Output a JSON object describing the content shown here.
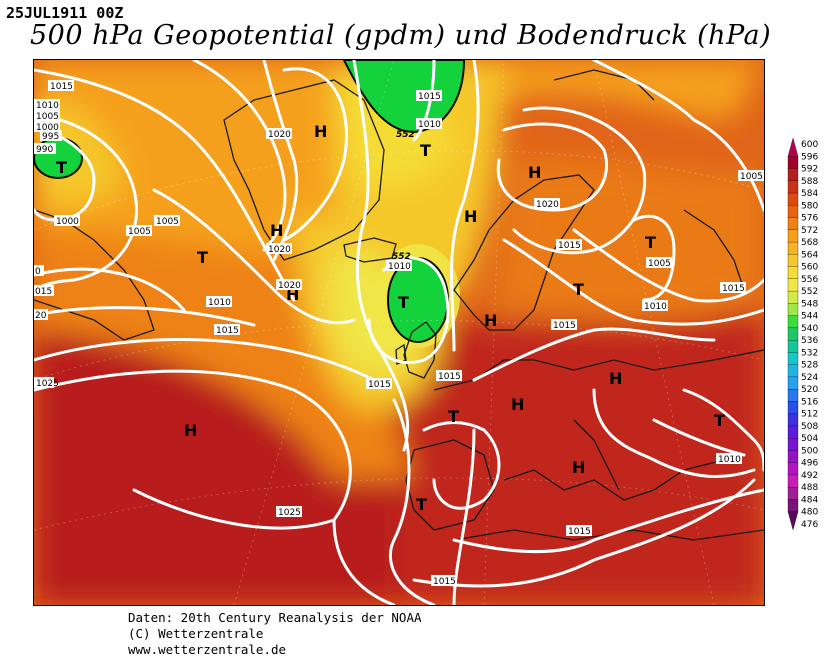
{
  "header": {
    "date_label": "25JUL1911 00Z",
    "title": "500 hPa Geopotential (gpdm) und Bodendruck (hPa)"
  },
  "footer": {
    "line1": "Daten: 20th Century Reanalysis der NOAA",
    "line2": "(C) Wetterzentrale",
    "line3": "www.wetterzentrale.de"
  },
  "legend": {
    "levels": [
      "600",
      "596",
      "592",
      "588",
      "584",
      "580",
      "576",
      "572",
      "568",
      "564",
      "560",
      "556",
      "552",
      "548",
      "544",
      "540",
      "536",
      "532",
      "528",
      "524",
      "520",
      "516",
      "512",
      "508",
      "504",
      "500",
      "496",
      "492",
      "488",
      "484",
      "480",
      "476"
    ],
    "colors": [
      "#b4004e",
      "#a0002a",
      "#b41e1e",
      "#c83216",
      "#dc4a10",
      "#e86410",
      "#ee8214",
      "#f5a01c",
      "#f5b424",
      "#f5c82c",
      "#f5dc34",
      "#f0e646",
      "#d2ea46",
      "#a0e646",
      "#3cdc3c",
      "#1ec864",
      "#14c896",
      "#14c8c8",
      "#1eb4e6",
      "#28a0f0",
      "#2878f0",
      "#2850e6",
      "#3c32dc",
      "#5a1edc",
      "#7814d2",
      "#9614c8",
      "#b414be",
      "#c81eb4",
      "#a01e96",
      "#781478",
      "#5a0a5a"
    ]
  },
  "map": {
    "highs": [
      "H",
      "H",
      "H",
      "H",
      "H",
      "H",
      "H",
      "H",
      "H",
      "H"
    ],
    "lows": [
      "T",
      "T",
      "T",
      "T",
      "T",
      "T",
      "T",
      "T",
      "T",
      "T"
    ],
    "isobar_labels": [
      "1015",
      "1010",
      "1005",
      "1000",
      "995",
      "990",
      "1000",
      "1005",
      "1020",
      "1020",
      "1010",
      "1015",
      "1005",
      "1010",
      "1020",
      "1015",
      "1015",
      "1020",
      "1015",
      "1005",
      "1010",
      "1015",
      "1015",
      "1015",
      "1015",
      "1010",
      "1025",
      "1025",
      "1015",
      "1015",
      "1010",
      "1005",
      "552",
      "552",
      "0",
      "015",
      "20",
      "1015"
    ]
  }
}
